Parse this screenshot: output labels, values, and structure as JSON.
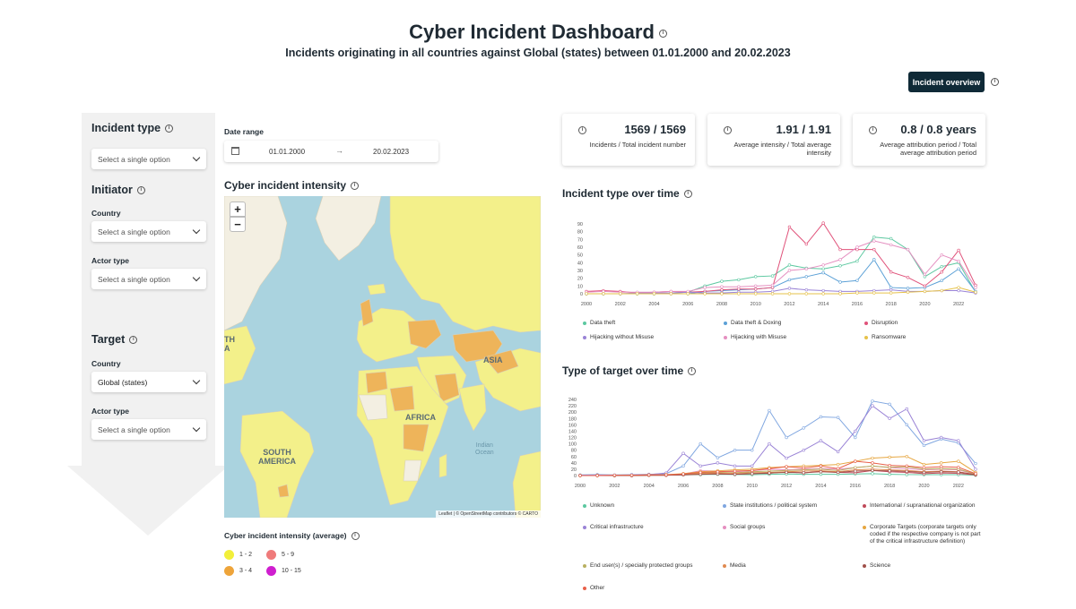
{
  "header": {
    "title": "Cyber Incident Dashboard",
    "subtitle": "Incidents originating in all countries against Global (states) between 01.01.2000 and 20.02.2023",
    "overview_button": "Incident overview"
  },
  "sidebar": {
    "incident_type": {
      "heading": "Incident type",
      "placeholder": "Select a single option"
    },
    "initiator": {
      "heading": "Initiator",
      "country_label": "Country",
      "country_value": "Select a single option",
      "actor_label": "Actor type",
      "actor_value": "Select a single option"
    },
    "target": {
      "heading": "Target",
      "country_label": "Country",
      "country_value": "Global (states)",
      "actor_label": "Actor type",
      "actor_value": "Select a single option"
    }
  },
  "date_range": {
    "label": "Date range",
    "from": "01.01.2000",
    "to": "20.02.2023",
    "arrow": "→"
  },
  "map": {
    "title": "Cyber incident intensity",
    "zoom_in": "+",
    "zoom_out": "−",
    "attribution": "Leaflet | © OpenStreetMap contributors © CARTO",
    "labels": {
      "asia": "ASIA",
      "africa": "AFRICA",
      "south_america": "SOUTH\nAMERICA",
      "north_america_fragment": "TH\nA",
      "indian_ocean": "Indian\nOcean"
    },
    "legend_title": "Cyber incident intensity (average)",
    "legend": [
      {
        "label": "1 - 2",
        "color": "#f2ef3a"
      },
      {
        "label": "5 - 9",
        "color": "#ef7b7b"
      },
      {
        "label": "3 - 4",
        "color": "#eea43a"
      },
      {
        "label": "10 - 15",
        "color": "#cf1fcf"
      }
    ]
  },
  "stats": [
    {
      "value": "1569 / 1569",
      "label": "Incidents / Total incident number"
    },
    {
      "value": "1.91 / 1.91",
      "label": "Average intensity / Total average intensity"
    },
    {
      "value": "0.8 / 0.8 years",
      "label": "Average attribution period / Total average attribution period"
    }
  ],
  "charts": {
    "incident_type_title": "Incident type over time",
    "target_type_title": "Type of target over time"
  },
  "chart_data": [
    {
      "type": "line",
      "title": "Incident type over time",
      "x_ticks": [
        "2000",
        "2002",
        "2004",
        "2006",
        "2008",
        "2010",
        "2012",
        "2014",
        "2016",
        "2018",
        "2020",
        "2022"
      ],
      "ylim": [
        0,
        90
      ],
      "y_ticks": [
        0,
        10,
        20,
        30,
        40,
        50,
        60,
        70,
        80,
        90
      ],
      "x": [
        2000,
        2001,
        2002,
        2003,
        2004,
        2005,
        2006,
        2007,
        2008,
        2009,
        2010,
        2011,
        2012,
        2013,
        2014,
        2015,
        2016,
        2017,
        2018,
        2019,
        2020,
        2021,
        2022,
        2023
      ],
      "series": [
        {
          "name": "Data theft",
          "color": "#5cc8a0",
          "values": [
            0,
            0,
            0,
            0,
            0,
            1,
            2,
            10,
            16,
            18,
            22,
            23,
            37,
            33,
            32,
            36,
            42,
            73,
            71,
            57,
            22,
            35,
            40,
            2
          ]
        },
        {
          "name": "Data theft & Doxing",
          "color": "#5ba0d6",
          "values": [
            0,
            0,
            0,
            0,
            0,
            0,
            0,
            3,
            4,
            5,
            6,
            8,
            18,
            22,
            27,
            15,
            17,
            44,
            8,
            7,
            8,
            17,
            32,
            3
          ]
        },
        {
          "name": "Disruption",
          "color": "#e0527a",
          "values": [
            3,
            4,
            3,
            1,
            2,
            3,
            2,
            3,
            5,
            6,
            6,
            8,
            86,
            64,
            91,
            57,
            57,
            57,
            28,
            21,
            10,
            28,
            56,
            11
          ]
        },
        {
          "name": "Hijacking without Misuse",
          "color": "#9a83d6",
          "values": [
            0,
            0,
            0,
            1,
            1,
            1,
            2,
            1,
            1,
            2,
            2,
            3,
            7,
            5,
            4,
            3,
            3,
            4,
            5,
            3,
            3,
            4,
            4,
            1
          ]
        },
        {
          "name": "Hijacking with Misuse",
          "color": "#e58fc0",
          "values": [
            2,
            3,
            2,
            2,
            2,
            3,
            3,
            8,
            9,
            9,
            10,
            11,
            30,
            32,
            37,
            44,
            60,
            68,
            63,
            57,
            25,
            50,
            42,
            8
          ]
        },
        {
          "name": "Ransomware",
          "color": "#e6c24a",
          "values": [
            0,
            0,
            0,
            0,
            0,
            0,
            0,
            0,
            0,
            0,
            0,
            0,
            0,
            0,
            0,
            0,
            1,
            1,
            1,
            2,
            3,
            4,
            8,
            2
          ]
        }
      ]
    },
    {
      "type": "line",
      "title": "Type of target over time",
      "x_ticks": [
        "2000",
        "2002",
        "2004",
        "2006",
        "2008",
        "2010",
        "2012",
        "2014",
        "2016",
        "2018",
        "2020",
        "2022"
      ],
      "ylim": [
        0,
        240
      ],
      "y_ticks": [
        0,
        20,
        40,
        60,
        80,
        100,
        120,
        140,
        160,
        180,
        200,
        220,
        240
      ],
      "x": [
        2000,
        2001,
        2002,
        2003,
        2004,
        2005,
        2006,
        2007,
        2008,
        2009,
        2010,
        2011,
        2012,
        2013,
        2014,
        2015,
        2016,
        2017,
        2018,
        2019,
        2020,
        2021,
        2022,
        2023
      ],
      "series": [
        {
          "name": "Unknown",
          "color": "#5cc8a0",
          "values": [
            0,
            0,
            0,
            0,
            1,
            1,
            2,
            3,
            4,
            3,
            3,
            4,
            5,
            4,
            4,
            4,
            5,
            6,
            4,
            3,
            3,
            3,
            3,
            1
          ]
        },
        {
          "name": "State institutions / political system",
          "color": "#7fa6e0",
          "values": [
            2,
            3,
            2,
            3,
            4,
            6,
            30,
            100,
            56,
            80,
            80,
            205,
            120,
            150,
            185,
            183,
            120,
            235,
            225,
            160,
            95,
            115,
            103,
            38
          ]
        },
        {
          "name": "International / supranational organization",
          "color": "#c04a5a",
          "values": [
            0,
            0,
            0,
            0,
            1,
            1,
            3,
            5,
            6,
            4,
            6,
            7,
            12,
            8,
            14,
            10,
            9,
            16,
            12,
            10,
            6,
            8,
            7,
            2
          ]
        },
        {
          "name": "Critical infrastructure",
          "color": "#9a83d6",
          "values": [
            1,
            1,
            1,
            2,
            3,
            8,
            70,
            30,
            40,
            30,
            30,
            100,
            55,
            80,
            110,
            75,
            140,
            220,
            180,
            210,
            110,
            120,
            110,
            20
          ]
        },
        {
          "name": "Social groups",
          "color": "#e58fc0",
          "values": [
            0,
            1,
            1,
            1,
            2,
            3,
            5,
            15,
            14,
            12,
            15,
            20,
            18,
            20,
            22,
            20,
            25,
            30,
            25,
            22,
            18,
            20,
            18,
            4
          ]
        },
        {
          "name": "Corporate Targets (corporate targets only coded if the respective company is not part of the critical infrastructure definition)",
          "color": "#e6a640",
          "values": [
            0,
            0,
            0,
            1,
            2,
            3,
            6,
            12,
            15,
            18,
            20,
            25,
            28,
            30,
            32,
            35,
            45,
            55,
            58,
            60,
            35,
            40,
            45,
            10
          ]
        },
        {
          "name": "End user(s) / specially protected groups",
          "color": "#b8b060",
          "values": [
            0,
            0,
            0,
            1,
            1,
            2,
            4,
            8,
            10,
            9,
            12,
            14,
            16,
            18,
            20,
            16,
            25,
            30,
            26,
            28,
            20,
            22,
            20,
            5
          ]
        },
        {
          "name": "Media",
          "color": "#e08a50",
          "values": [
            0,
            0,
            0,
            0,
            1,
            1,
            3,
            6,
            8,
            7,
            9,
            10,
            12,
            14,
            15,
            12,
            18,
            20,
            18,
            16,
            12,
            14,
            12,
            3
          ]
        },
        {
          "name": "Science",
          "color": "#a0504a",
          "values": [
            0,
            0,
            0,
            0,
            1,
            1,
            2,
            4,
            5,
            4,
            6,
            8,
            10,
            9,
            12,
            10,
            14,
            16,
            15,
            13,
            10,
            12,
            11,
            3
          ]
        },
        {
          "name": "Other",
          "color": "#e8604a",
          "values": [
            0,
            0,
            1,
            1,
            2,
            2,
            5,
            10,
            12,
            14,
            16,
            22,
            28,
            24,
            30,
            22,
            45,
            40,
            32,
            30,
            25,
            28,
            26,
            6
          ]
        }
      ]
    }
  ]
}
